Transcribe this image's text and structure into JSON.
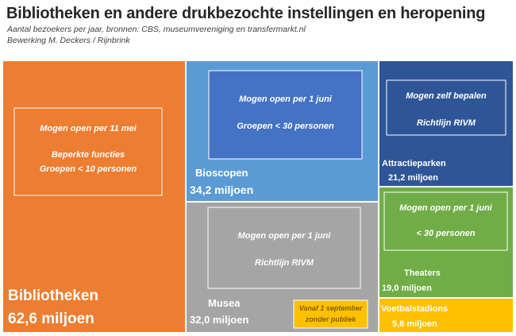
{
  "chart_data": {
    "type": "treemap",
    "title": "Bibliotheken en andere drukbezochte instellingen en heropening",
    "subtitle": "Aantal bezoekers per jaar, bronnen: CBS, museumvereniging en transfermarkt.nl",
    "credit": "Bewerking M. Deckers / Rijnbrink",
    "unit": "miljoen bezoekers per jaar",
    "tiles": [
      {
        "name": "Bibliotheken",
        "value_label": "62,6 miljoen",
        "value": 62.6,
        "color": "#ED7D31",
        "note": [
          "Mogen open per 11 mei",
          "",
          "Beperkte functies",
          "Groepen <  10 personen"
        ]
      },
      {
        "name": "Bioscopen",
        "value_label": "34,2 miljoen",
        "value": 34.2,
        "color": "#5B9BD5",
        "note": [
          "Mogen open per 1 juni",
          "",
          "Groepen <  30 personen"
        ]
      },
      {
        "name": "Musea",
        "value_label": "32,0 miljoen",
        "value": 32.0,
        "color": "#A5A5A5",
        "note": [
          "Mogen open per 1 juni",
          "",
          "Richtlijn RIVM"
        ]
      },
      {
        "name": "Attractieparken",
        "value_label": "21,2 miljoen",
        "value": 21.2,
        "color": "#2E5597",
        "note": [
          "Mogen zelf bepalen",
          "",
          "Richtlijn RIVM"
        ]
      },
      {
        "name": "Theaters",
        "value_label": "19,0 miljoen",
        "value": 19.0,
        "color": "#70AD47",
        "note": [
          "Mogen open per 1 juni",
          "",
          "< 30 personen"
        ]
      },
      {
        "name": "Voetbalstadions",
        "value_label": "5,8 miljoen",
        "value": 5.8,
        "color": "#FFC000",
        "note": [
          "Vanaf 1 september",
          "zonder publiek"
        ]
      }
    ]
  }
}
